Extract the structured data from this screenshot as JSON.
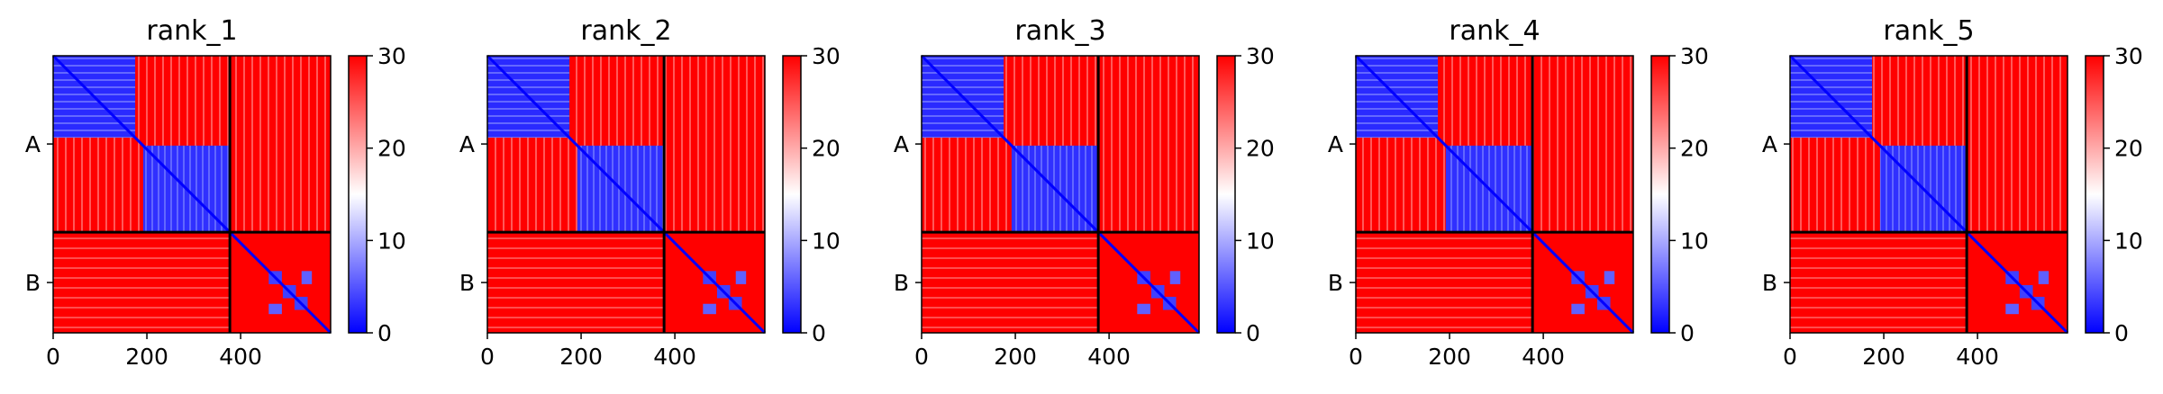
{
  "chart_data": [
    {
      "type": "heatmap",
      "title": "rank_1",
      "xlim": [
        0,
        592
      ],
      "x_ticks": [
        "0",
        "200",
        "400"
      ],
      "y_labels": [
        "A",
        "B"
      ],
      "chain_boundary": 377,
      "colorbar": {
        "range": [
          0,
          30
        ],
        "ticks": [
          "0",
          "10",
          "20",
          "30"
        ],
        "colors": [
          "#0000ff",
          "#ffffff",
          "#ff0000"
        ]
      }
    },
    {
      "type": "heatmap",
      "title": "rank_2",
      "xlim": [
        0,
        592
      ],
      "x_ticks": [
        "0",
        "200",
        "400"
      ],
      "y_labels": [
        "A",
        "B"
      ],
      "chain_boundary": 377,
      "colorbar": {
        "range": [
          0,
          30
        ],
        "ticks": [
          "0",
          "10",
          "20",
          "30"
        ],
        "colors": [
          "#0000ff",
          "#ffffff",
          "#ff0000"
        ]
      }
    },
    {
      "type": "heatmap",
      "title": "rank_3",
      "xlim": [
        0,
        592
      ],
      "x_ticks": [
        "0",
        "200",
        "400"
      ],
      "y_labels": [
        "A",
        "B"
      ],
      "chain_boundary": 377,
      "colorbar": {
        "range": [
          0,
          30
        ],
        "ticks": [
          "0",
          "10",
          "20",
          "30"
        ],
        "colors": [
          "#0000ff",
          "#ffffff",
          "#ff0000"
        ]
      }
    },
    {
      "type": "heatmap",
      "title": "rank_4",
      "xlim": [
        0,
        592
      ],
      "x_ticks": [
        "0",
        "200",
        "400"
      ],
      "y_labels": [
        "A",
        "B"
      ],
      "chain_boundary": 377,
      "colorbar": {
        "range": [
          0,
          30
        ],
        "ticks": [
          "0",
          "10",
          "20",
          "30"
        ],
        "colors": [
          "#0000ff",
          "#ffffff",
          "#ff0000"
        ]
      }
    },
    {
      "type": "heatmap",
      "title": "rank_5",
      "xlim": [
        0,
        592
      ],
      "x_ticks": [
        "0",
        "200",
        "400"
      ],
      "y_labels": [
        "A",
        "B"
      ],
      "chain_boundary": 377,
      "colorbar": {
        "range": [
          0,
          30
        ],
        "ticks": [
          "0",
          "10",
          "20",
          "30"
        ],
        "colors": [
          "#0000ff",
          "#ffffff",
          "#ff0000"
        ]
      }
    }
  ]
}
